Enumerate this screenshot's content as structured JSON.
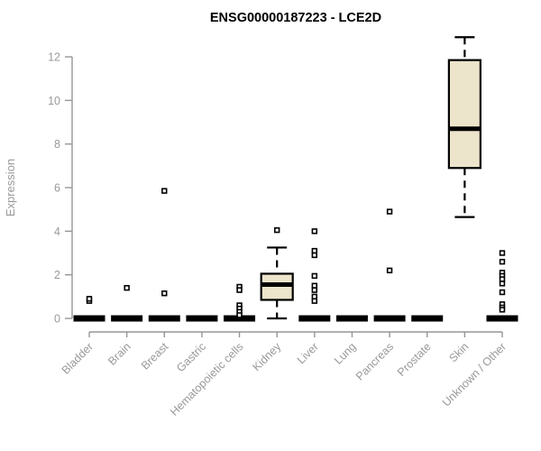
{
  "chart_data": {
    "type": "boxplot",
    "title": "ENSG00000187223 - LCE2D",
    "ylabel": "Expression",
    "xlabel": "",
    "ylim": [
      0,
      12
    ],
    "yticks": [
      0,
      2,
      4,
      6,
      8,
      10,
      12
    ],
    "grid": false,
    "legend": "none",
    "categories": [
      "Bladder",
      "Brain",
      "Breast",
      "Gastric",
      "Hematopoietic cells",
      "Kidney",
      "Liver",
      "Lung",
      "Pancreas",
      "Prostate",
      "Skin",
      "Unknown / Other"
    ],
    "series": [
      {
        "category": "Bladder",
        "q1": 0,
        "median": 0,
        "q3": 0,
        "whisker_low": 0,
        "whisker_high": 0,
        "outliers": [
          0.8,
          0.9
        ]
      },
      {
        "category": "Brain",
        "q1": 0,
        "median": 0,
        "q3": 0,
        "whisker_low": 0,
        "whisker_high": 0,
        "outliers": [
          1.4
        ]
      },
      {
        "category": "Breast",
        "q1": 0,
        "median": 0,
        "q3": 0,
        "whisker_low": 0,
        "whisker_high": 0,
        "outliers": [
          5.85,
          1.15
        ]
      },
      {
        "category": "Gastric",
        "q1": 0,
        "median": 0,
        "q3": 0,
        "whisker_low": 0,
        "whisker_high": 0,
        "outliers": []
      },
      {
        "category": "Hematopoietic cells",
        "q1": 0,
        "median": 0,
        "q3": 0,
        "whisker_low": 0,
        "whisker_high": 0,
        "outliers": [
          1.45,
          1.3,
          0.6,
          0.45,
          0.3,
          0.15
        ]
      },
      {
        "category": "Kidney",
        "q1": 0.85,
        "median": 1.55,
        "q3": 2.05,
        "whisker_low": 0,
        "whisker_high": 3.25,
        "outliers": [
          4.05
        ]
      },
      {
        "category": "Liver",
        "q1": 0,
        "median": 0,
        "q3": 0,
        "whisker_low": 0,
        "whisker_high": 0,
        "outliers": [
          4.0,
          3.1,
          2.9,
          1.95,
          1.5,
          1.3,
          1.0,
          0.8
        ]
      },
      {
        "category": "Lung",
        "q1": 0,
        "median": 0,
        "q3": 0,
        "whisker_low": 0,
        "whisker_high": 0,
        "outliers": []
      },
      {
        "category": "Pancreas",
        "q1": 0,
        "median": 0,
        "q3": 0,
        "whisker_low": 0,
        "whisker_high": 0,
        "outliers": [
          4.9,
          2.2
        ]
      },
      {
        "category": "Prostate",
        "q1": 0,
        "median": 0,
        "q3": 0,
        "whisker_low": 0,
        "whisker_high": 0,
        "outliers": []
      },
      {
        "category": "Skin",
        "q1": 6.9,
        "median": 8.7,
        "q3": 11.85,
        "whisker_low": 4.65,
        "whisker_high": 12.9,
        "outliers": []
      },
      {
        "category": "Unknown / Other",
        "q1": 0,
        "median": 0,
        "q3": 0,
        "whisker_low": 0,
        "whisker_high": 0,
        "outliers": [
          3.0,
          2.6,
          2.1,
          1.95,
          1.8,
          1.6,
          1.2,
          0.65,
          0.5,
          0.4
        ]
      }
    ],
    "colors": {
      "box_fill": "#ece4cb",
      "box_border": "#000000",
      "median": "#000000",
      "outlier_fill": "#ffffff",
      "axis": "#969696",
      "axis_text": "#999999",
      "title": "#000000",
      "background": "#ffffff"
    }
  }
}
